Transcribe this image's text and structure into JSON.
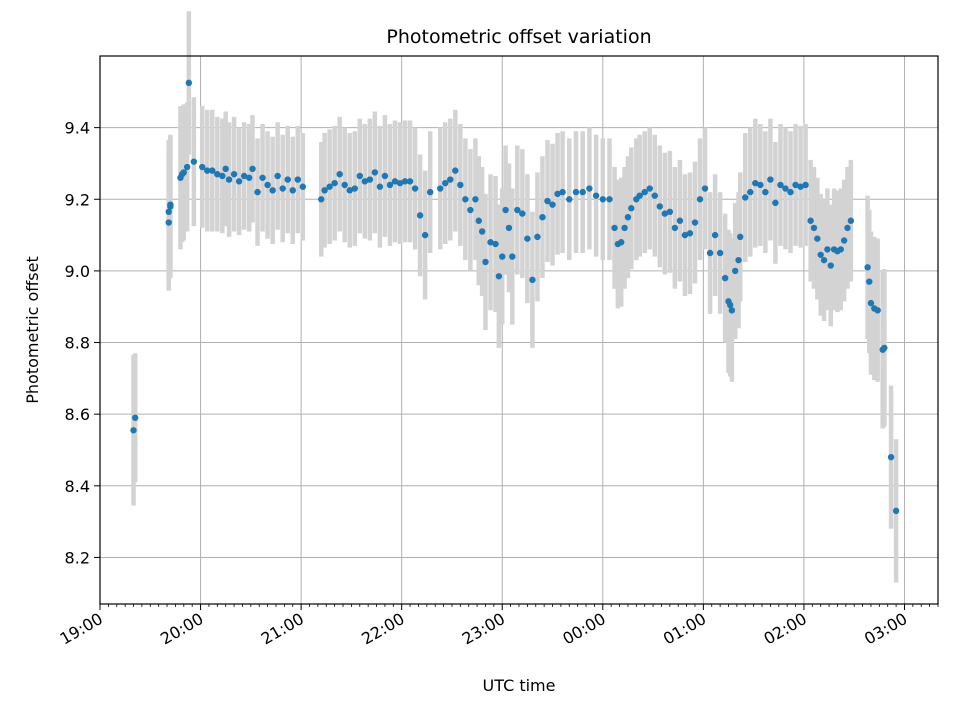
{
  "chart_data": {
    "type": "scatter",
    "title": "Photometric offset variation",
    "xlabel": "UTC time",
    "ylabel": "Photometric offset",
    "x_is_time": true,
    "xlim": [
      "19:00",
      "03:20"
    ],
    "ylim": [
      8.07,
      9.6
    ],
    "grid": true,
    "marker_color": "#1f77b4",
    "errorbar_color": "#d3d3d3",
    "x_ticks": [
      "19:00",
      "20:00",
      "21:00",
      "22:00",
      "23:00",
      "00:00",
      "01:00",
      "02:00",
      "03:00"
    ],
    "y_ticks": [
      8.2,
      8.4,
      8.6,
      8.8,
      9.0,
      9.2,
      9.4
    ],
    "points": [
      [
        "19:20",
        8.555,
        0.21
      ],
      [
        "19:21",
        8.59,
        0.18
      ],
      [
        "19:41",
        9.135,
        0.19
      ],
      [
        "19:41",
        9.165,
        0.2
      ],
      [
        "19:42",
        9.18,
        0.2
      ],
      [
        "19:42",
        9.185,
        0.19
      ],
      [
        "19:48",
        9.26,
        0.2
      ],
      [
        "19:49",
        9.27,
        0.19
      ],
      [
        "19:50",
        9.275,
        0.19
      ],
      [
        "19:52",
        9.29,
        0.18
      ],
      [
        "19:53",
        9.525,
        0.2
      ],
      [
        "19:56",
        9.305,
        0.18
      ],
      [
        "20:01",
        9.29,
        0.17
      ],
      [
        "20:04",
        9.28,
        0.17
      ],
      [
        "20:07",
        9.28,
        0.17
      ],
      [
        "20:10",
        9.27,
        0.16
      ],
      [
        "20:13",
        9.265,
        0.16
      ],
      [
        "20:15",
        9.285,
        0.16
      ],
      [
        "20:17",
        9.255,
        0.16
      ],
      [
        "20:20",
        9.27,
        0.16
      ],
      [
        "20:23",
        9.25,
        0.15
      ],
      [
        "20:26",
        9.265,
        0.15
      ],
      [
        "20:29",
        9.26,
        0.15
      ],
      [
        "20:31",
        9.285,
        0.15
      ],
      [
        "20:34",
        9.22,
        0.15
      ],
      [
        "20:37",
        9.26,
        0.15
      ],
      [
        "20:40",
        9.24,
        0.15
      ],
      [
        "20:43",
        9.225,
        0.15
      ],
      [
        "20:46",
        9.265,
        0.15
      ],
      [
        "20:49",
        9.23,
        0.15
      ],
      [
        "20:52",
        9.255,
        0.15
      ],
      [
        "20:55",
        9.225,
        0.15
      ],
      [
        "20:58",
        9.255,
        0.15
      ],
      [
        "21:01",
        9.235,
        0.15
      ],
      [
        "21:12",
        9.2,
        0.16
      ],
      [
        "21:14",
        9.225,
        0.16
      ],
      [
        "21:17",
        9.235,
        0.16
      ],
      [
        "21:20",
        9.245,
        0.16
      ],
      [
        "21:23",
        9.27,
        0.16
      ],
      [
        "21:26",
        9.24,
        0.16
      ],
      [
        "21:29",
        9.225,
        0.16
      ],
      [
        "21:32",
        9.23,
        0.16
      ],
      [
        "21:35",
        9.265,
        0.16
      ],
      [
        "21:38",
        9.25,
        0.16
      ],
      [
        "21:41",
        9.255,
        0.17
      ],
      [
        "21:44",
        9.275,
        0.17
      ],
      [
        "21:47",
        9.235,
        0.17
      ],
      [
        "21:50",
        9.265,
        0.17
      ],
      [
        "21:53",
        9.24,
        0.17
      ],
      [
        "21:56",
        9.25,
        0.17
      ],
      [
        "21:59",
        9.245,
        0.17
      ],
      [
        "22:02",
        9.25,
        0.17
      ],
      [
        "22:05",
        9.25,
        0.17
      ],
      [
        "22:08",
        9.23,
        0.17
      ],
      [
        "22:11",
        9.155,
        0.17
      ],
      [
        "22:14",
        9.1,
        0.18
      ],
      [
        "22:17",
        9.22,
        0.17
      ],
      [
        "22:23",
        9.23,
        0.17
      ],
      [
        "22:26",
        9.245,
        0.17
      ],
      [
        "22:29",
        9.255,
        0.17
      ],
      [
        "22:32",
        9.28,
        0.17
      ],
      [
        "22:35",
        9.24,
        0.17
      ],
      [
        "22:38",
        9.2,
        0.17
      ],
      [
        "22:41",
        9.17,
        0.17
      ],
      [
        "22:44",
        9.2,
        0.17
      ],
      [
        "22:46",
        9.14,
        0.18
      ],
      [
        "22:48",
        9.11,
        0.18
      ],
      [
        "22:50",
        9.025,
        0.19
      ],
      [
        "22:53",
        9.08,
        0.19
      ],
      [
        "22:56",
        9.075,
        0.19
      ],
      [
        "22:58",
        8.985,
        0.2
      ],
      [
        "23:00",
        9.04,
        0.19
      ],
      [
        "23:02",
        9.17,
        0.18
      ],
      [
        "23:04",
        9.12,
        0.18
      ],
      [
        "23:06",
        9.04,
        0.19
      ],
      [
        "23:09",
        9.17,
        0.18
      ],
      [
        "23:12",
        9.16,
        0.18
      ],
      [
        "23:15",
        9.09,
        0.18
      ],
      [
        "23:18",
        8.975,
        0.19
      ],
      [
        "23:21",
        9.095,
        0.18
      ],
      [
        "23:24",
        9.15,
        0.17
      ],
      [
        "23:27",
        9.195,
        0.17
      ],
      [
        "23:30",
        9.185,
        0.17
      ],
      [
        "23:33",
        9.215,
        0.17
      ],
      [
        "23:36",
        9.22,
        0.17
      ],
      [
        "23:40",
        9.2,
        0.17
      ],
      [
        "23:44",
        9.22,
        0.17
      ],
      [
        "23:48",
        9.22,
        0.17
      ],
      [
        "23:52",
        9.23,
        0.17
      ],
      [
        "23:56",
        9.21,
        0.17
      ],
      [
        "00:00",
        9.2,
        0.17
      ],
      [
        "00:04",
        9.2,
        0.17
      ],
      [
        "00:07",
        9.12,
        0.17
      ],
      [
        "00:09",
        9.075,
        0.18
      ],
      [
        "00:11",
        9.08,
        0.18
      ],
      [
        "00:13",
        9.12,
        0.17
      ],
      [
        "00:15",
        9.15,
        0.17
      ],
      [
        "00:17",
        9.175,
        0.17
      ],
      [
        "00:20",
        9.2,
        0.17
      ],
      [
        "00:22",
        9.21,
        0.17
      ],
      [
        "00:25",
        9.22,
        0.17
      ],
      [
        "00:28",
        9.23,
        0.17
      ],
      [
        "00:31",
        9.21,
        0.17
      ],
      [
        "00:34",
        9.18,
        0.17
      ],
      [
        "00:37",
        9.16,
        0.17
      ],
      [
        "00:40",
        9.165,
        0.17
      ],
      [
        "00:43",
        9.12,
        0.17
      ],
      [
        "00:46",
        9.14,
        0.17
      ],
      [
        "00:49",
        9.1,
        0.17
      ],
      [
        "00:52",
        9.105,
        0.17
      ],
      [
        "00:55",
        9.135,
        0.17
      ],
      [
        "00:58",
        9.2,
        0.17
      ],
      [
        "01:01",
        9.23,
        0.17
      ],
      [
        "01:04",
        9.05,
        0.17
      ],
      [
        "01:07",
        9.1,
        0.17
      ],
      [
        "01:10",
        9.05,
        0.17
      ],
      [
        "01:13",
        8.98,
        0.18
      ],
      [
        "01:15",
        8.915,
        0.2
      ],
      [
        "01:16",
        8.905,
        0.2
      ],
      [
        "01:17",
        8.89,
        0.2
      ],
      [
        "01:19",
        9.0,
        0.19
      ],
      [
        "01:21",
        9.03,
        0.19
      ],
      [
        "01:22",
        9.095,
        0.18
      ],
      [
        "01:25",
        9.205,
        0.18
      ],
      [
        "01:28",
        9.22,
        0.18
      ],
      [
        "01:31",
        9.245,
        0.18
      ],
      [
        "01:34",
        9.24,
        0.17
      ],
      [
        "01:37",
        9.22,
        0.17
      ],
      [
        "01:40",
        9.255,
        0.17
      ],
      [
        "01:43",
        9.19,
        0.17
      ],
      [
        "01:46",
        9.24,
        0.17
      ],
      [
        "01:49",
        9.23,
        0.17
      ],
      [
        "01:52",
        9.22,
        0.17
      ],
      [
        "01:55",
        9.24,
        0.17
      ],
      [
        "01:58",
        9.235,
        0.17
      ],
      [
        "02:01",
        9.24,
        0.17
      ],
      [
        "02:04",
        9.14,
        0.17
      ],
      [
        "02:06",
        9.12,
        0.17
      ],
      [
        "02:08",
        9.09,
        0.17
      ],
      [
        "02:10",
        9.045,
        0.17
      ],
      [
        "02:12",
        9.03,
        0.17
      ],
      [
        "02:14",
        9.06,
        0.17
      ],
      [
        "02:16",
        9.015,
        0.17
      ],
      [
        "02:18",
        9.06,
        0.17
      ],
      [
        "02:20",
        9.055,
        0.17
      ],
      [
        "02:22",
        9.06,
        0.17
      ],
      [
        "02:24",
        9.085,
        0.17
      ],
      [
        "02:26",
        9.12,
        0.17
      ],
      [
        "02:28",
        9.14,
        0.17
      ],
      [
        "02:38",
        9.01,
        0.2
      ],
      [
        "02:39",
        8.97,
        0.2
      ],
      [
        "02:40",
        8.91,
        0.2
      ],
      [
        "02:42",
        8.895,
        0.2
      ],
      [
        "02:44",
        8.89,
        0.2
      ],
      [
        "02:47",
        8.78,
        0.22
      ],
      [
        "02:48",
        8.785,
        0.22
      ],
      [
        "02:52",
        8.48,
        0.2
      ],
      [
        "02:55",
        8.33,
        0.2
      ]
    ]
  }
}
